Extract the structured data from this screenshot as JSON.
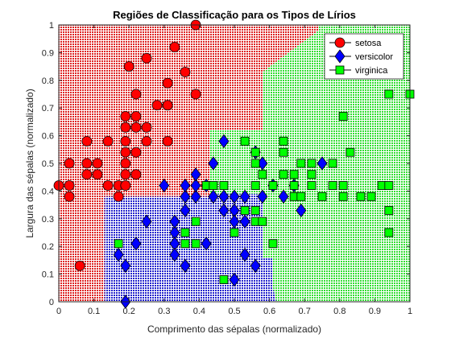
{
  "chart_data": {
    "type": "scatter",
    "title": "Regiões de Classificação para os Tipos de Lírios",
    "xlabel": "Comprimento das sépalas (normalizado)",
    "ylabel": "Largura das sépalas (normalizado)",
    "xlim": [
      0,
      1
    ],
    "ylim": [
      0,
      1
    ],
    "x_ticks": [
      "0",
      "0.1",
      "0.2",
      "0.3",
      "0.4",
      "0.5",
      "0.6",
      "0.7",
      "0.8",
      "0.9",
      "1"
    ],
    "y_ticks": [
      "0",
      "0.1",
      "0.2",
      "0.3",
      "0.4",
      "0.5",
      "0.6",
      "0.7",
      "0.8",
      "0.9",
      "1"
    ],
    "legend_position": "top-right",
    "region_colors": {
      "setosa": "#dd2222",
      "versicolor": "#2222cc",
      "virginica": "#33dd33"
    },
    "regions": [
      {
        "class": "setosa",
        "polygon": [
          [
            0,
            0
          ],
          [
            0.13,
            0
          ],
          [
            0.13,
            0.38
          ],
          [
            0.43,
            0.38
          ],
          [
            0.43,
            0.62
          ],
          [
            0.58,
            0.62
          ],
          [
            0.58,
            0.83
          ],
          [
            0.74,
            0.98
          ],
          [
            0.74,
            1
          ],
          [
            0,
            1
          ]
        ]
      },
      {
        "class": "versicolor",
        "polygon": [
          [
            0.13,
            0
          ],
          [
            0.62,
            0
          ],
          [
            0.61,
            0.05
          ],
          [
            0.61,
            0.16
          ],
          [
            0.58,
            0.16
          ],
          [
            0.58,
            0.39
          ],
          [
            0.43,
            0.39
          ],
          [
            0.43,
            0.38
          ],
          [
            0.13,
            0.38
          ]
        ]
      },
      {
        "class": "virginica",
        "polygon": [
          [
            0.62,
            0
          ],
          [
            1,
            0
          ],
          [
            1,
            1
          ],
          [
            0.74,
            1
          ],
          [
            0.74,
            0.98
          ],
          [
            0.58,
            0.83
          ],
          [
            0.58,
            0.62
          ],
          [
            0.43,
            0.62
          ],
          [
            0.43,
            0.39
          ],
          [
            0.58,
            0.39
          ],
          [
            0.58,
            0.16
          ],
          [
            0.61,
            0.16
          ],
          [
            0.61,
            0.05
          ]
        ]
      }
    ],
    "series": [
      {
        "name": "setosa",
        "marker": "circle",
        "color": "#ff0000",
        "points": [
          [
            0.39,
            1
          ],
          [
            0.33,
            0.92
          ],
          [
            0.25,
            0.88
          ],
          [
            0.36,
            0.83
          ],
          [
            0.22,
            0.75
          ],
          [
            0.31,
            0.71
          ],
          [
            0.28,
            0.71
          ],
          [
            0.19,
            0.67
          ],
          [
            0.22,
            0.67
          ],
          [
            0.31,
            0.71
          ],
          [
            0.19,
            0.63
          ],
          [
            0.25,
            0.63
          ],
          [
            0.22,
            0.63
          ],
          [
            0.19,
            0.58
          ],
          [
            0.25,
            0.58
          ],
          [
            0.31,
            0.58
          ],
          [
            0.08,
            0.58
          ],
          [
            0.14,
            0.58
          ],
          [
            0.19,
            0.54
          ],
          [
            0.22,
            0.54
          ],
          [
            0.19,
            0.5
          ],
          [
            0.03,
            0.5
          ],
          [
            0.08,
            0.5
          ],
          [
            0.11,
            0.5
          ],
          [
            0.22,
            0.46
          ],
          [
            0.19,
            0.46
          ],
          [
            0.11,
            0.46
          ],
          [
            0.08,
            0.46
          ],
          [
            0.03,
            0.42
          ],
          [
            0.0,
            0.42
          ],
          [
            0.14,
            0.42
          ],
          [
            0.17,
            0.42
          ],
          [
            0.19,
            0.42
          ],
          [
            0.03,
            0.38
          ],
          [
            0.06,
            0.13
          ],
          [
            0.17,
            0.38
          ],
          [
            0.2,
            0.85
          ],
          [
            0.31,
            0.79
          ],
          [
            0.39,
            0.75
          ]
        ]
      },
      {
        "name": "versicolor",
        "marker": "diamond",
        "color": "#0000ff",
        "points": [
          [
            0.19,
            0
          ],
          [
            0.22,
            0.21
          ],
          [
            0.17,
            0.17
          ],
          [
            0.19,
            0.13
          ],
          [
            0.33,
            0.25
          ],
          [
            0.33,
            0.21
          ],
          [
            0.33,
            0.17
          ],
          [
            0.36,
            0.13
          ],
          [
            0.33,
            0.29
          ],
          [
            0.36,
            0.33
          ],
          [
            0.36,
            0.38
          ],
          [
            0.39,
            0.38
          ],
          [
            0.36,
            0.42
          ],
          [
            0.39,
            0.42
          ],
          [
            0.42,
            0.42
          ],
          [
            0.39,
            0.46
          ],
          [
            0.44,
            0.5
          ],
          [
            0.3,
            0.42
          ],
          [
            0.25,
            0.29
          ],
          [
            0.44,
            0.38
          ],
          [
            0.47,
            0.38
          ],
          [
            0.5,
            0.38
          ],
          [
            0.5,
            0.33
          ],
          [
            0.53,
            0.38
          ],
          [
            0.47,
            0.33
          ],
          [
            0.5,
            0.29
          ],
          [
            0.53,
            0.17
          ],
          [
            0.5,
            0.08
          ],
          [
            0.56,
            0.13
          ],
          [
            0.58,
            0.38
          ],
          [
            0.61,
            0.42
          ],
          [
            0.64,
            0.38
          ],
          [
            0.67,
            0.42
          ],
          [
            0.69,
            0.33
          ],
          [
            0.47,
            0.58
          ],
          [
            0.75,
            0.5
          ],
          [
            0.53,
            0.29
          ],
          [
            0.56,
            0.54
          ],
          [
            0.58,
            0.5
          ],
          [
            0.42,
            0.21
          ]
        ]
      },
      {
        "name": "virginica",
        "marker": "square",
        "color": "#00ff00",
        "points": [
          [
            0.17,
            0.21
          ],
          [
            0.36,
            0.21
          ],
          [
            0.36,
            0.25
          ],
          [
            0.39,
            0.21
          ],
          [
            0.39,
            0.29
          ],
          [
            0.42,
            0.42
          ],
          [
            0.44,
            0.42
          ],
          [
            0.47,
            0.42
          ],
          [
            0.47,
            0.08
          ],
          [
            0.5,
            0.25
          ],
          [
            0.53,
            0.58
          ],
          [
            0.53,
            0.33
          ],
          [
            0.56,
            0.54
          ],
          [
            0.56,
            0.5
          ],
          [
            0.56,
            0.42
          ],
          [
            0.56,
            0.33
          ],
          [
            0.56,
            0.29
          ],
          [
            0.58,
            0.29
          ],
          [
            0.58,
            0.46
          ],
          [
            0.61,
            0.42
          ],
          [
            0.61,
            0.21
          ],
          [
            0.64,
            0.54
          ],
          [
            0.64,
            0.46
          ],
          [
            0.67,
            0.46
          ],
          [
            0.67,
            0.42
          ],
          [
            0.69,
            0.5
          ],
          [
            0.72,
            0.5
          ],
          [
            0.72,
            0.46
          ],
          [
            0.72,
            0.42
          ],
          [
            0.75,
            0.38
          ],
          [
            0.78,
            0.42
          ],
          [
            0.78,
            0.5
          ],
          [
            0.81,
            0.42
          ],
          [
            0.81,
            0.38
          ],
          [
            0.81,
            0.67
          ],
          [
            0.83,
            0.54
          ],
          [
            0.86,
            0.38
          ],
          [
            0.89,
            0.38
          ],
          [
            0.92,
            0.42
          ],
          [
            0.94,
            0.42
          ],
          [
            0.94,
            0.33
          ],
          [
            0.94,
            0.25
          ],
          [
            0.94,
            0.75
          ],
          [
            1,
            0.75
          ],
          [
            0.64,
            0.58
          ],
          [
            0.67,
            0.38
          ],
          [
            0.69,
            0.38
          ]
        ]
      }
    ]
  }
}
